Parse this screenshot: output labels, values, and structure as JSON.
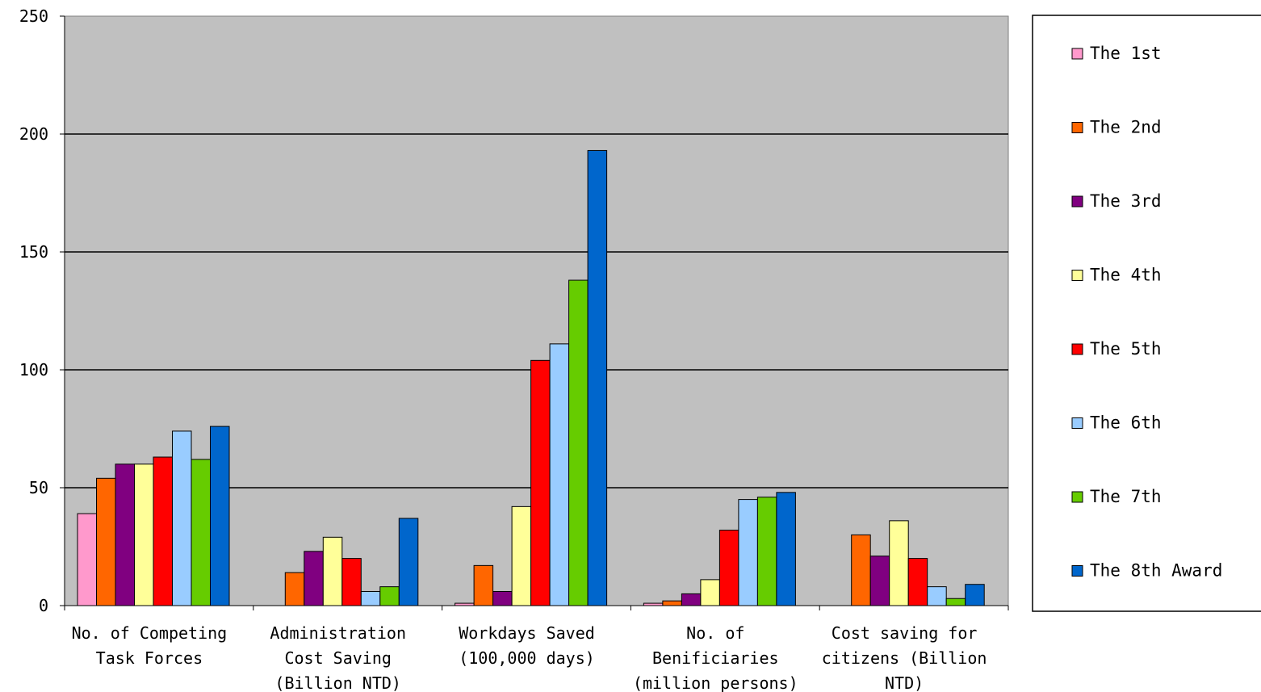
{
  "chart_data": {
    "type": "bar",
    "categories": [
      [
        "No. of Competing",
        "Task Forces"
      ],
      [
        "Administration",
        "Cost Saving",
        "(Billion NTD)"
      ],
      [
        "Workdays Saved",
        "(100,000 days)"
      ],
      [
        "No. of",
        "Benificiaries",
        "(million persons)"
      ],
      [
        "Cost saving for",
        "citizens (Billion",
        "NTD)"
      ]
    ],
    "ylim": [
      0,
      250
    ],
    "yticks": [
      0,
      50,
      100,
      150,
      200,
      250
    ],
    "grid": true,
    "legend_position": "right",
    "plot_background": "#c0c0c0",
    "series": [
      {
        "name": "The 1st",
        "color": "#ff99cc",
        "values": [
          39,
          0,
          1,
          1,
          0
        ]
      },
      {
        "name": "The 2nd",
        "color": "#ff6600",
        "values": [
          54,
          14,
          17,
          2,
          30
        ]
      },
      {
        "name": "The 3rd",
        "color": "#800080",
        "values": [
          60,
          23,
          6,
          5,
          21
        ]
      },
      {
        "name": "The 4th",
        "color": "#ffff99",
        "values": [
          60,
          29,
          42,
          11,
          36
        ]
      },
      {
        "name": "The 5th",
        "color": "#ff0000",
        "values": [
          63,
          20,
          104,
          32,
          20
        ]
      },
      {
        "name": "The 6th",
        "color": "#99ccff",
        "values": [
          74,
          6,
          111,
          45,
          8
        ]
      },
      {
        "name": "The 7th",
        "color": "#66cc00",
        "values": [
          62,
          8,
          138,
          46,
          3
        ]
      },
      {
        "name": "The 8th Award",
        "color": "#0066cc",
        "values": [
          76,
          37,
          193,
          48,
          9
        ]
      }
    ]
  }
}
